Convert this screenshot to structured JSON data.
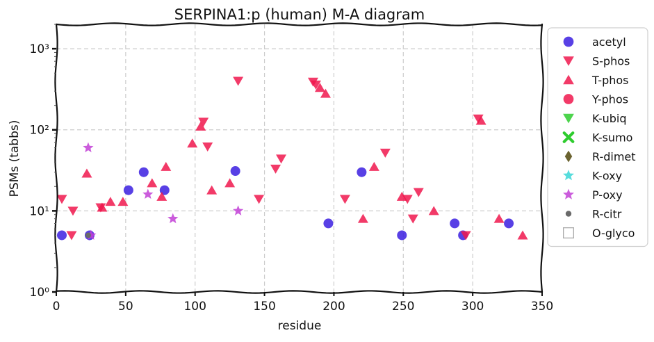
{
  "chart_data": {
    "type": "scatter",
    "title": "SERPINA1:p (human) M-A diagram",
    "xlabel": "residue",
    "ylabel": "PSMs (tabbs)",
    "xlim": [
      0,
      350
    ],
    "ylim": [
      1,
      2000
    ],
    "yscale": "log",
    "grid": true,
    "legend_position": "outside-right",
    "x_ticks": [
      0,
      50,
      100,
      150,
      200,
      250,
      300,
      350
    ],
    "y_ticks": [
      {
        "value": 1,
        "label": "10⁰"
      },
      {
        "value": 10,
        "label": "10¹"
      },
      {
        "value": 100,
        "label": "10²"
      },
      {
        "value": 1000,
        "label": "10³"
      }
    ],
    "series": [
      {
        "name": "acetyl",
        "marker": "circle",
        "color": "#3b1fe0",
        "points": [
          [
            4,
            5
          ],
          [
            24,
            5
          ],
          [
            52,
            18
          ],
          [
            63,
            30
          ],
          [
            78,
            18
          ],
          [
            129,
            31
          ],
          [
            196,
            7
          ],
          [
            220,
            30
          ],
          [
            249,
            5
          ],
          [
            287,
            7
          ],
          [
            293,
            5
          ],
          [
            326,
            7
          ]
        ]
      },
      {
        "name": "S-phos",
        "marker": "triangle-down",
        "color": "#f0184d",
        "points": [
          [
            4,
            14
          ],
          [
            11,
            5
          ],
          [
            12,
            10
          ],
          [
            32,
            11
          ],
          [
            106,
            125
          ],
          [
            109,
            62
          ],
          [
            131,
            400
          ],
          [
            146,
            14
          ],
          [
            158,
            33
          ],
          [
            162,
            44
          ],
          [
            185,
            390
          ],
          [
            187,
            360
          ],
          [
            208,
            14
          ],
          [
            237,
            52
          ],
          [
            253,
            14
          ],
          [
            257,
            8
          ],
          [
            261,
            17
          ],
          [
            295,
            5
          ],
          [
            304,
            137
          ]
        ]
      },
      {
        "name": "T-phos",
        "marker": "triangle-up",
        "color": "#f0184d",
        "points": [
          [
            22,
            29
          ],
          [
            33,
            11
          ],
          [
            39,
            13
          ],
          [
            48,
            13
          ],
          [
            69,
            22
          ],
          [
            76,
            15
          ],
          [
            79,
            35
          ],
          [
            98,
            68
          ],
          [
            104,
            110
          ],
          [
            112,
            18
          ],
          [
            125,
            22
          ],
          [
            190,
            330
          ],
          [
            194,
            280
          ],
          [
            221,
            8
          ],
          [
            229,
            35
          ],
          [
            249,
            15
          ],
          [
            272,
            10
          ],
          [
            306,
            130
          ],
          [
            319,
            8
          ],
          [
            336,
            5
          ]
        ]
      },
      {
        "name": "Y-phos",
        "marker": "circle",
        "color": "#f0184d",
        "points": []
      },
      {
        "name": "K-ubiq",
        "marker": "triangle-down",
        "color": "#2ecc2e",
        "points": []
      },
      {
        "name": "K-sumo",
        "marker": "x",
        "color": "#2ecc2e",
        "points": []
      },
      {
        "name": "R-dimet",
        "marker": "diamond",
        "color": "#6b6330",
        "points": []
      },
      {
        "name": "K-oxy",
        "marker": "star",
        "color": "#38d6d6",
        "points": []
      },
      {
        "name": "P-oxy",
        "marker": "star",
        "color": "#c23fd6",
        "points": [
          [
            23,
            60
          ],
          [
            25,
            5
          ],
          [
            66,
            16
          ],
          [
            84,
            8
          ],
          [
            131,
            10
          ]
        ]
      },
      {
        "name": "R-citr",
        "marker": "dot",
        "color": "#6a6a6a",
        "points": [
          [
            23,
            5
          ]
        ]
      },
      {
        "name": "O-glyco",
        "marker": "square-open",
        "color": "#aaaaaa",
        "points": []
      }
    ]
  }
}
